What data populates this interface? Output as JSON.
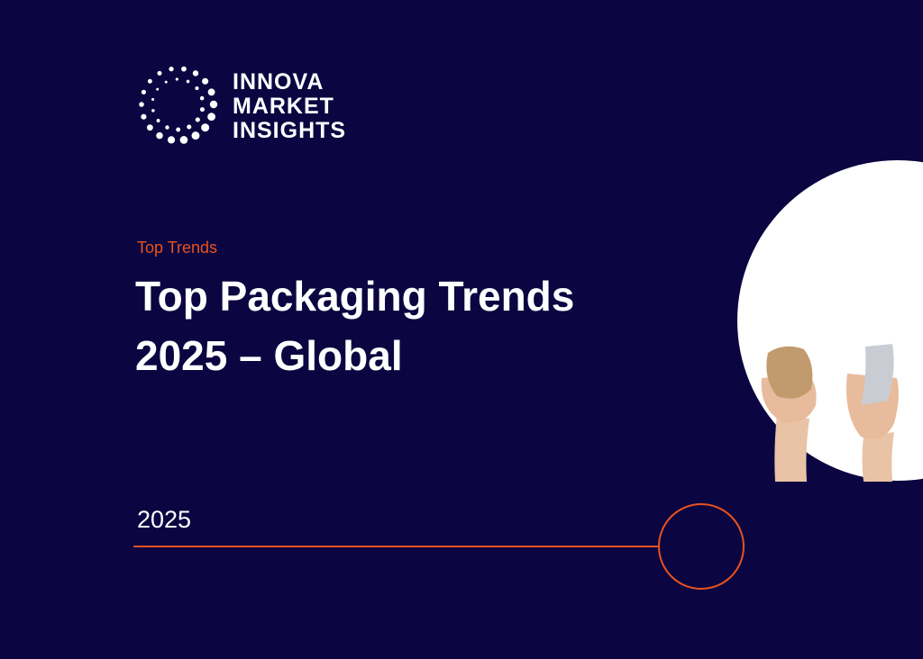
{
  "logo": {
    "lines": [
      "INNOVA",
      "MARKET",
      "INSIGHTS"
    ]
  },
  "eyebrow": "Top Trends",
  "title": {
    "lines": [
      "Top Packaging Trends",
      "2025 – Global"
    ]
  },
  "year": "2025"
}
